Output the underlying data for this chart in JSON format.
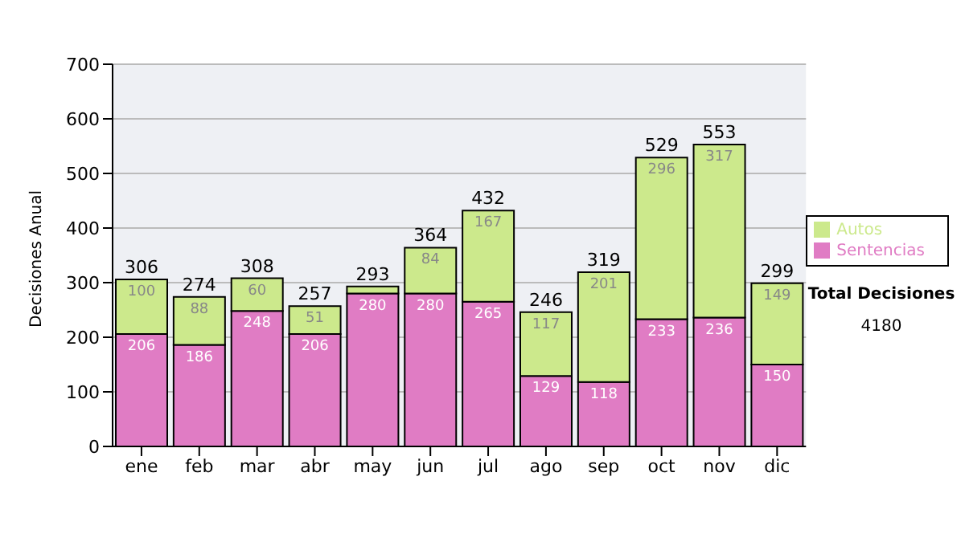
{
  "chart_data": {
    "type": "bar",
    "stacked": true,
    "ylabel": "Decisiones Anual",
    "categories": [
      "ene",
      "feb",
      "mar",
      "abr",
      "may",
      "jun",
      "jul",
      "ago",
      "sep",
      "oct",
      "nov",
      "dic"
    ],
    "series": [
      {
        "name": "Sentencias",
        "color": "#e07cc4",
        "values": [
          206,
          186,
          248,
          206,
          280,
          280,
          265,
          129,
          118,
          233,
          236,
          150
        ],
        "value_labels": [
          "206",
          "186",
          "248",
          "206",
          "280",
          "280",
          "265",
          "129",
          "118",
          "233",
          "236",
          "150"
        ]
      },
      {
        "name": "Autos",
        "color": "#cce98c",
        "values": [
          100,
          88,
          60,
          51,
          13,
          84,
          167,
          117,
          201,
          296,
          317,
          149
        ],
        "value_labels": [
          "100",
          "88",
          "60",
          "51",
          null,
          "84",
          "167",
          "117",
          "201",
          "296",
          "317",
          "149"
        ]
      }
    ],
    "totals": [
      "306",
      "274",
      "308",
      "257",
      "293",
      "364",
      "432",
      "246",
      "319",
      "529",
      "553",
      "299"
    ],
    "ylim": [
      0,
      700
    ],
    "yticks": [
      0,
      100,
      200,
      300,
      400,
      500,
      600,
      700
    ],
    "grid": "y",
    "legend": "right",
    "annotations": [
      "Total Decisiones",
      "4180"
    ]
  }
}
